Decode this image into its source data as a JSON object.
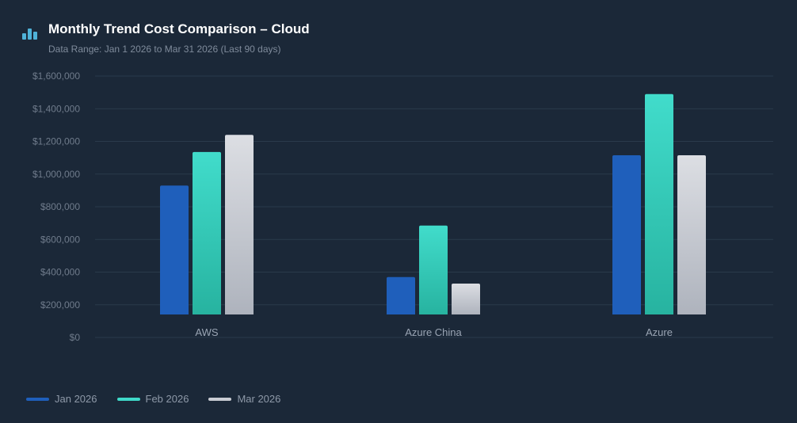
{
  "header": {
    "icon": "bar-chart-icon",
    "title": "Monthly Trend Cost Comparison – Cloud",
    "subtitle": "Data Range: Jan 1 2026 to Mar 31 2026 (Last 90 days)"
  },
  "colors": {
    "background": "#1b2838",
    "icon": "#4fb3d9",
    "grid": "#2a3a4b",
    "tick_text": "#6f7b8b",
    "category_text": "#9aa5b4"
  },
  "chart_data": {
    "type": "bar",
    "categories": [
      "AWS",
      "Azure China",
      "Azure"
    ],
    "series": [
      {
        "name": "Jan 2026",
        "values": [
          930000,
          370000,
          1115000
        ],
        "color": "#1f5fbb",
        "gradient": [
          "#1f5fbb",
          "#1f5fbb"
        ]
      },
      {
        "name": "Feb 2026",
        "values": [
          1135000,
          685000,
          1490000
        ],
        "color": "#3fd9c9",
        "gradient": [
          "#41dccb",
          "#27b3a0"
        ]
      },
      {
        "name": "Mar 2026",
        "values": [
          1240000,
          330000,
          1115000
        ],
        "color": "#c9ccd3",
        "gradient": [
          "#dcdee3",
          "#aeb3bd"
        ]
      }
    ],
    "yticks": [
      "$0",
      "$200,000",
      "$400,000",
      "$600,000",
      "$800,000",
      "$1,000,000",
      "$1,200,000",
      "$1,400,000",
      "$1,600,000"
    ],
    "yticks_values": [
      0,
      200000,
      400000,
      600000,
      800000,
      1000000,
      1200000,
      1400000,
      1600000
    ],
    "ylim": [
      0,
      1600000
    ],
    "grid": true,
    "legend_position": "bottom-left"
  }
}
